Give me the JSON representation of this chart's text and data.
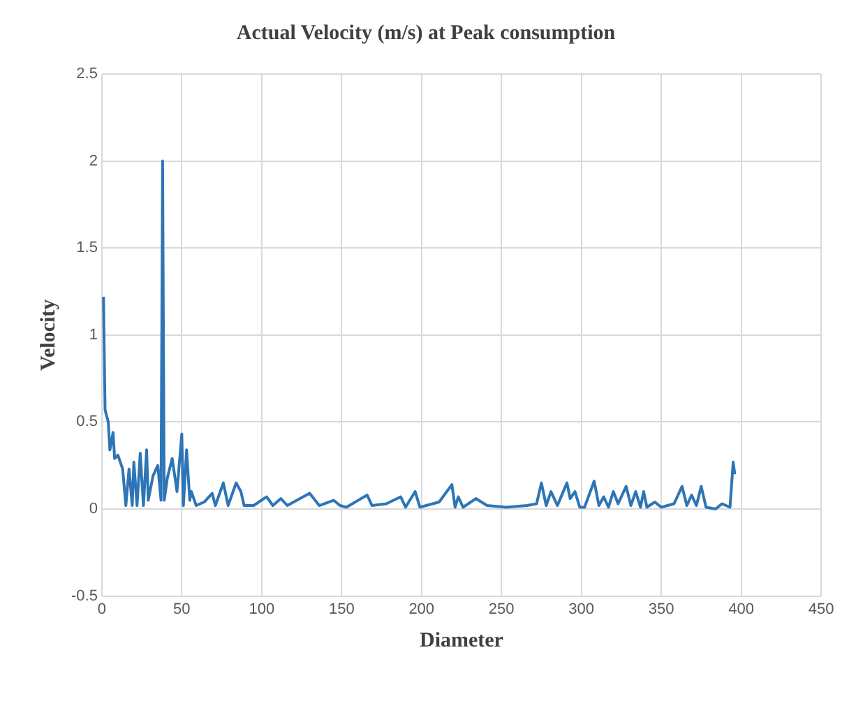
{
  "chart_data": {
    "type": "line",
    "title": "Actual Velocity (m/s) at Peak consumption",
    "xlabel": "Diameter",
    "ylabel": "Velocity",
    "x": [
      1,
      2,
      4,
      5,
      7,
      8,
      10,
      13,
      15,
      17,
      19,
      20,
      22,
      24,
      26,
      28,
      29,
      32,
      35,
      37,
      38,
      39,
      41,
      44,
      47,
      50,
      51,
      53,
      55,
      56,
      59,
      64,
      69,
      71,
      76,
      79,
      84,
      87,
      89,
      95,
      103,
      107,
      112,
      116,
      122,
      130,
      136,
      145,
      149,
      153,
      166,
      169,
      178,
      187,
      190,
      196,
      199,
      211,
      219,
      221,
      223,
      226,
      234,
      241,
      253,
      266,
      272,
      275,
      278,
      281,
      285,
      291,
      293,
      296,
      299,
      302,
      308,
      311,
      314,
      317,
      320,
      323,
      328,
      331,
      334,
      337,
      339,
      341,
      346,
      350,
      358,
      363,
      366,
      369,
      372,
      375,
      378,
      384,
      388,
      393,
      395,
      396
    ],
    "series": [
      {
        "color": "#2e75b6",
        "values": [
          1.22,
          0.57,
          0.5,
          0.34,
          0.44,
          0.29,
          0.31,
          0.23,
          0.02,
          0.23,
          0.02,
          0.27,
          0.02,
          0.32,
          0.02,
          0.34,
          0.05,
          0.19,
          0.25,
          0.05,
          2.0,
          0.05,
          0.18,
          0.29,
          0.1,
          0.43,
          0.02,
          0.34,
          0.05,
          0.1,
          0.02,
          0.04,
          0.09,
          0.02,
          0.15,
          0.02,
          0.15,
          0.1,
          0.02,
          0.02,
          0.07,
          0.02,
          0.06,
          0.02,
          0.05,
          0.09,
          0.02,
          0.05,
          0.02,
          0.01,
          0.08,
          0.02,
          0.03,
          0.07,
          0.01,
          0.1,
          0.01,
          0.04,
          0.14,
          0.01,
          0.07,
          0.01,
          0.06,
          0.02,
          0.01,
          0.02,
          0.03,
          0.15,
          0.02,
          0.1,
          0.02,
          0.15,
          0.06,
          0.1,
          0.01,
          0.01,
          0.16,
          0.02,
          0.07,
          0.01,
          0.1,
          0.03,
          0.13,
          0.02,
          0.1,
          0.01,
          0.1,
          0.01,
          0.04,
          0.01,
          0.03,
          0.13,
          0.02,
          0.08,
          0.02,
          0.13,
          0.01,
          0.0,
          0.03,
          0.01,
          0.27,
          0.2
        ]
      }
    ],
    "xlim": [
      0,
      450
    ],
    "xticks": [
      0,
      50,
      100,
      150,
      200,
      250,
      300,
      350,
      400,
      450
    ],
    "ylim": [
      -0.5,
      2.5
    ],
    "yticks": [
      -0.5,
      0,
      0.5,
      1,
      1.5,
      2,
      2.5
    ],
    "grid": true,
    "legend": false,
    "marker": "none",
    "line_style": "solid"
  }
}
